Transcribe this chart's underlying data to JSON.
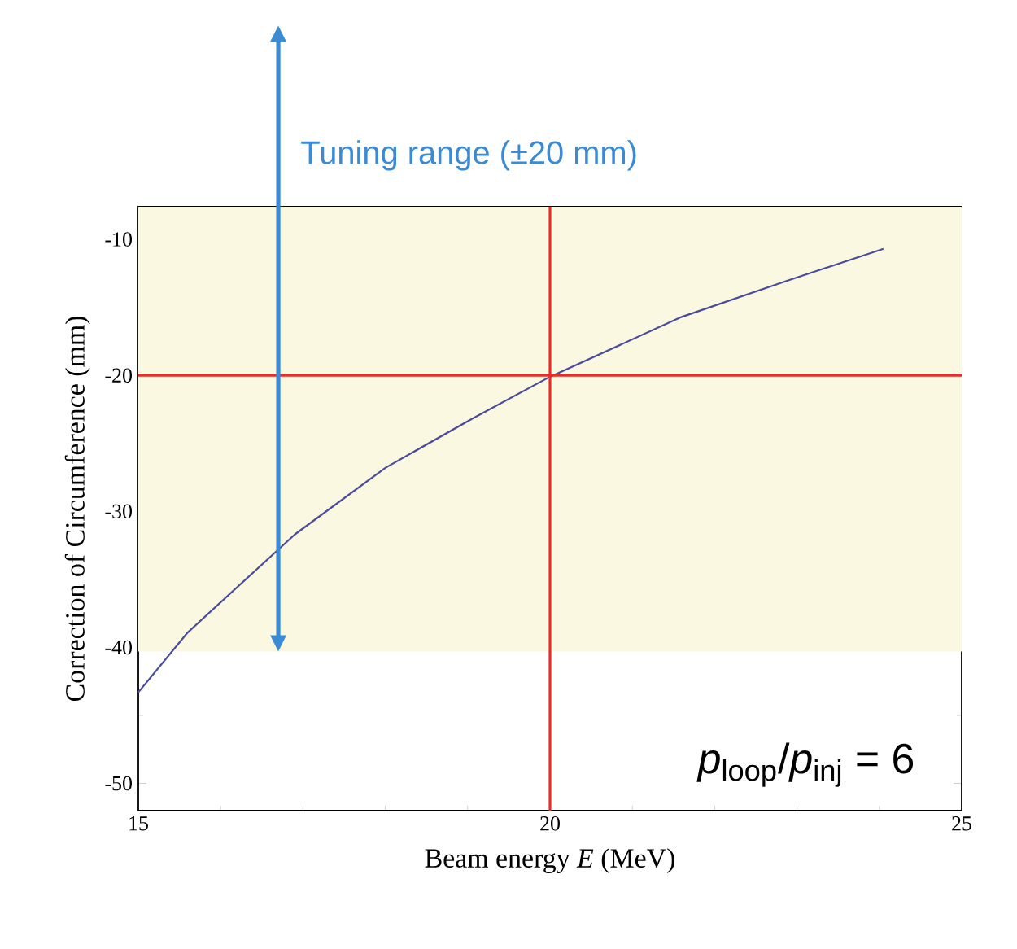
{
  "chart_data": {
    "type": "line",
    "xlabel": "Beam energy *E* (MeV)",
    "ylabel": "Correction of Circumference (mm)",
    "x": [
      15,
      15.6,
      16.9,
      18.0,
      19.05,
      20.0,
      21.6,
      22.9,
      24.05
    ],
    "series": [
      {
        "color": "#4a4a9e",
        "values": [
          -43.3,
          -38.9,
          -31.7,
          -26.8,
          -23.2,
          -20.1,
          -15.7,
          -13.0,
          -10.7
        ]
      }
    ],
    "xlim": [
      15,
      25
    ],
    "xticks": [
      15,
      20,
      25
    ],
    "ylim": [
      -52,
      -7.6
    ],
    "yticks": [
      -50,
      -40,
      -30,
      -20,
      -10
    ],
    "ref_lines": [
      {
        "axis": "x",
        "value": 20,
        "color": "#ee2a24"
      },
      {
        "axis": "y",
        "value": -20,
        "color": "#ee2a24"
      }
    ],
    "bands": [
      {
        "axis": "y",
        "from": -40.3,
        "to": -7.6,
        "label": "Tuning range (±20 mm)",
        "color": "#fbf8e1"
      }
    ],
    "annotations": [
      "*p*$_{loop}$/*p*$_{inj}$ = 6"
    ],
    "marker": "none",
    "line_style": "solid"
  }
}
